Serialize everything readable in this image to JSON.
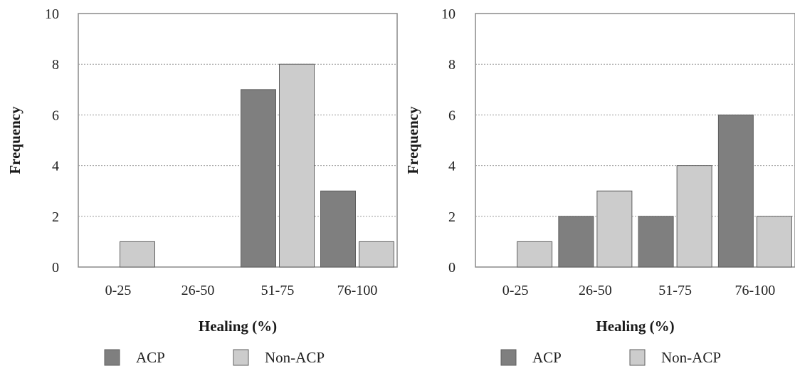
{
  "chart_data": [
    {
      "type": "bar",
      "categories": [
        "0-25",
        "26-50",
        "51-75",
        "76-100"
      ],
      "series": [
        {
          "name": "ACP",
          "values": [
            0,
            0,
            7,
            3
          ],
          "color": "#7f7f7f"
        },
        {
          "name": "Non-ACP",
          "values": [
            1,
            0,
            8,
            1
          ],
          "color": "#cccccc"
        }
      ],
      "xlabel": "Healing (%)",
      "ylabel": "Frequency",
      "ylim": [
        0,
        10
      ],
      "yticks": [
        0,
        2,
        4,
        6,
        8,
        10
      ],
      "grid": true,
      "legend": "bottom"
    },
    {
      "type": "bar",
      "categories": [
        "0-25",
        "26-50",
        "51-75",
        "76-100"
      ],
      "series": [
        {
          "name": "ACP",
          "values": [
            0,
            2,
            2,
            6
          ],
          "color": "#7f7f7f"
        },
        {
          "name": "Non-ACP",
          "values": [
            1,
            3,
            4,
            2
          ],
          "color": "#cccccc"
        }
      ],
      "xlabel": "Healing (%)",
      "ylabel": "Frequency",
      "ylim": [
        0,
        10
      ],
      "yticks": [
        0,
        2,
        4,
        6,
        8,
        10
      ],
      "grid": true,
      "legend": "bottom"
    }
  ]
}
